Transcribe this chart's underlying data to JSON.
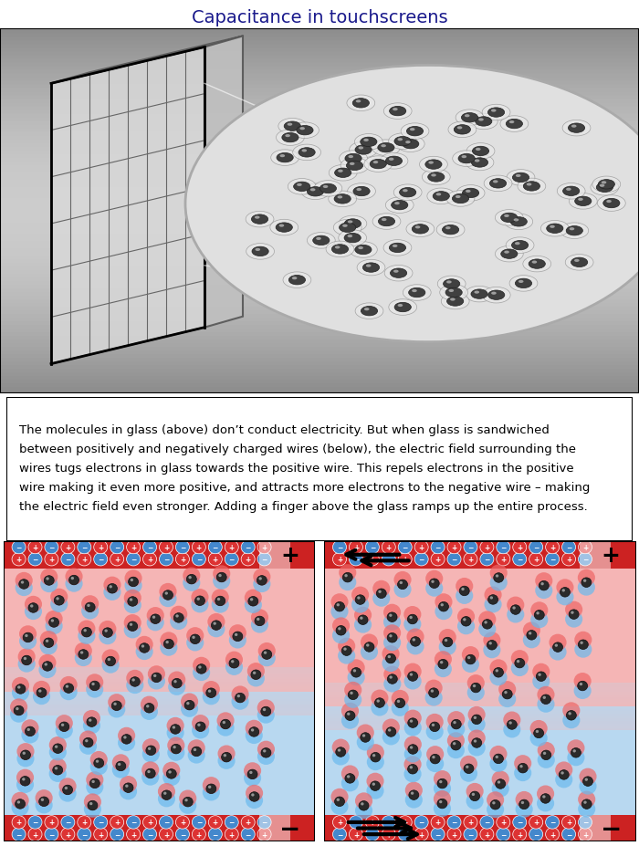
{
  "title": "Capacitance in touchscreens",
  "title_color": "#1a1a8c",
  "title_fontsize": 14,
  "body_text": "The molecules in glass (above) don’t conduct electricity. But when glass is sandwiched\nbetween positively and negatively charged wires (below), the electric field surrounding the\nwires tugs electrons in glass towards the positive wire. This repels electrons in the positive\nwire making it even more positive, and attracts more electrons to the negative wire – making\nthe electric field even stronger. Adding a finger above the glass ramps up the entire process.",
  "background_color": "#ffffff",
  "panel_bg_gray": "#b0b0b0",
  "circle_bg": "#e8e8e8",
  "pink_color": "#f0a0a0",
  "light_pink": "#f5c5c5",
  "blue_color": "#a0c8e8",
  "light_blue": "#c5ddf0",
  "red_wire_color": "#cc2222",
  "blue_wire_color": "#4488cc",
  "positive_sign_color": "#ffffff",
  "negative_sign_color": "#ffffff"
}
